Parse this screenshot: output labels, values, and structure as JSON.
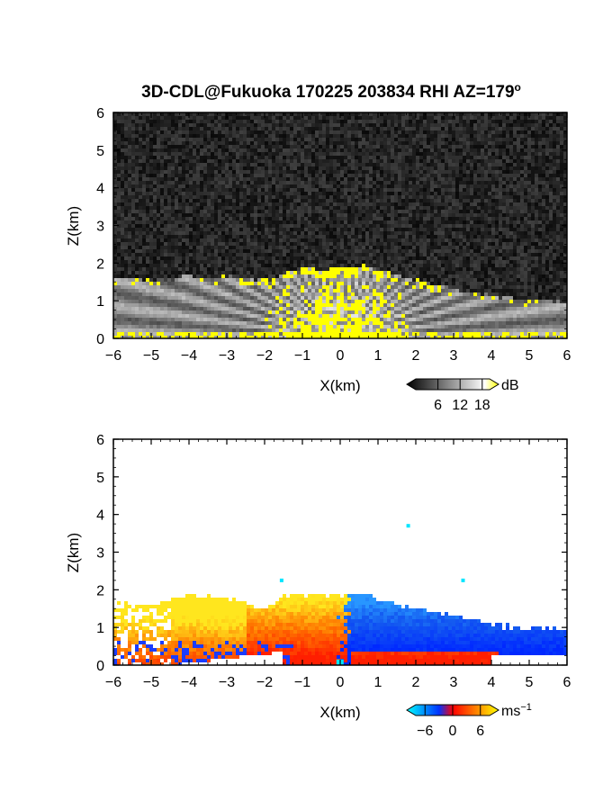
{
  "title": "3D-CDL@Fukuoka 170225 203834 RHI AZ=179",
  "title_sup": "o",
  "chart_data": [
    {
      "type": "heatmap",
      "field": "backscatter",
      "xlabel": "X(km)",
      "ylabel": "Z(km)",
      "xlim": [
        -6,
        6
      ],
      "ylim": [
        0,
        6
      ],
      "xticks": [
        "-6",
        "-5",
        "-4",
        "-3",
        "-2",
        "-1",
        "0",
        "1",
        "2",
        "3",
        "4",
        "5",
        "6"
      ],
      "yticks": [
        "0",
        "1",
        "2",
        "3",
        "4",
        "5",
        "6"
      ],
      "background": "noise",
      "colorbar": {
        "unit": "dB",
        "ticks": [
          "6",
          "12",
          "18"
        ],
        "tick_values": [
          6,
          12,
          18
        ],
        "range": [
          0,
          20
        ],
        "colors": [
          "#000000",
          "#ffffff",
          "#ffff00"
        ]
      },
      "echo_top_profile": [
        [
          -6,
          1.6
        ],
        [
          -5,
          1.55
        ],
        [
          -4.3,
          1.55
        ],
        [
          -4.1,
          1.75
        ],
        [
          -3.8,
          1.6
        ],
        [
          -3,
          1.65
        ],
        [
          -2.2,
          1.55
        ],
        [
          -1.8,
          1.55
        ],
        [
          -1.2,
          1.85
        ],
        [
          0,
          1.85
        ],
        [
          0.6,
          1.95
        ],
        [
          1.5,
          1.65
        ],
        [
          2.5,
          1.45
        ],
        [
          3.5,
          1.2
        ],
        [
          4.2,
          1.1
        ],
        [
          5,
          1.05
        ],
        [
          6,
          0.95
        ]
      ]
    },
    {
      "type": "heatmap",
      "field": "doppler_velocity",
      "xlabel": "X(km)",
      "ylabel": "Z(km)",
      "xlim": [
        -6,
        6
      ],
      "ylim": [
        0,
        6
      ],
      "xticks": [
        "-6",
        "-5",
        "-4",
        "-3",
        "-2",
        "-1",
        "0",
        "1",
        "2",
        "3",
        "4",
        "5",
        "6"
      ],
      "yticks": [
        "0",
        "1",
        "2",
        "3",
        "4",
        "5",
        "6"
      ],
      "colorbar": {
        "unit": "ms",
        "unit_sup": "−1",
        "ticks": [
          "−6",
          "0",
          "6"
        ],
        "tick_values": [
          -6,
          0,
          6
        ],
        "range": [
          -8,
          8
        ],
        "colors": [
          "#00ffff",
          "#0033ff",
          "#ff0000",
          "#ffff00"
        ]
      },
      "echo_top_profile": [
        [
          -6,
          1.65
        ],
        [
          -5,
          1.6
        ],
        [
          -4.2,
          1.85
        ],
        [
          -3,
          1.8
        ],
        [
          -2,
          1.5
        ],
        [
          -1.5,
          1.85
        ],
        [
          0.7,
          1.85
        ],
        [
          1.5,
          1.6
        ],
        [
          2.5,
          1.4
        ],
        [
          3.2,
          1.3
        ],
        [
          4,
          1.1
        ],
        [
          5,
          1.0
        ],
        [
          6,
          1.0
        ]
      ],
      "scatter_points": [
        [
          1.8,
          3.7
        ],
        [
          -1.55,
          2.25
        ],
        [
          3.25,
          2.25
        ]
      ]
    }
  ]
}
